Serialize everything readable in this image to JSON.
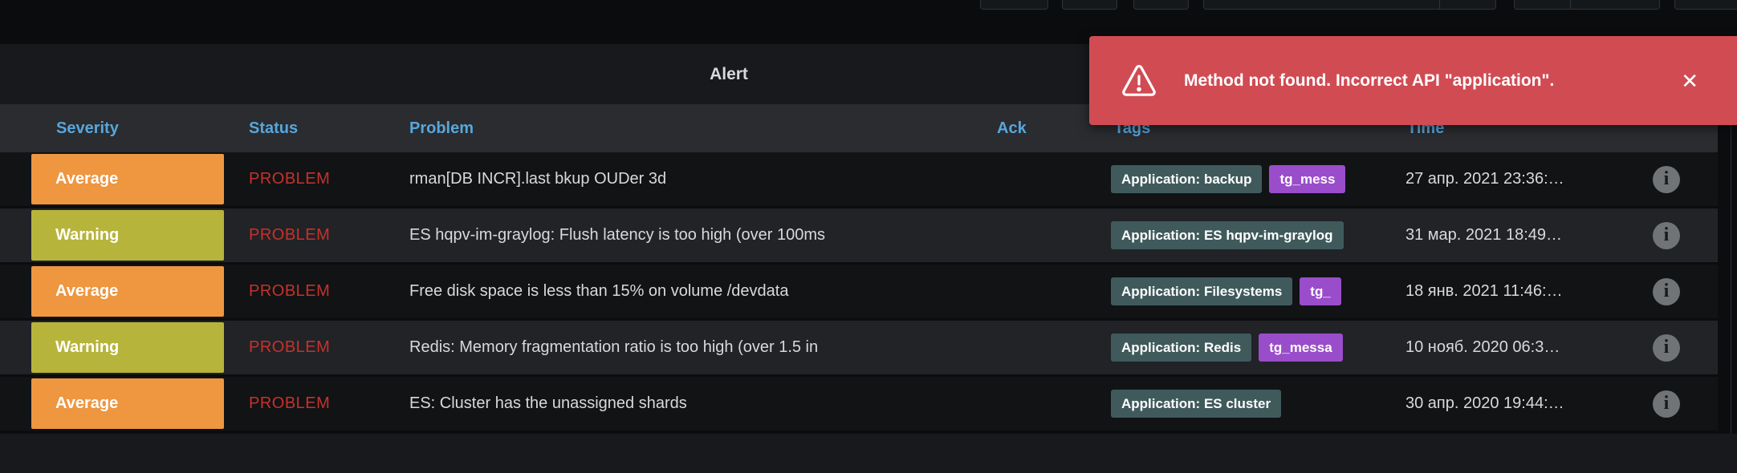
{
  "panel": {
    "title": "Alert"
  },
  "toast": {
    "message": "Method not found. Incorrect API \"application\".",
    "close_glyph": "✕",
    "background": "#d14b53"
  },
  "table": {
    "headers": {
      "severity": "Severity",
      "status": "Status",
      "problem": "Problem",
      "ack": "Ack",
      "tags": "Tags",
      "time": "Time"
    },
    "header_color": "#58a6dd",
    "status_color": "#c8312b",
    "severity_colors": {
      "Average": "#ee9640",
      "Warning": "#b7b43b"
    },
    "rows": [
      {
        "severity": "Average",
        "severity_color": "#ee9640",
        "status": "PROBLEM",
        "problem": "rman[DB INCR].last bkup OUDer 3d",
        "tags": [
          {
            "label": "Application: backup",
            "color": "#405a5c"
          },
          {
            "label": "tg_mess",
            "color": "#9a4dca"
          }
        ],
        "time": "27 апр. 2021 23:36:…"
      },
      {
        "severity": "Warning",
        "severity_color": "#b7b43b",
        "status": "PROBLEM",
        "problem": "ES hqpv-im-graylog: Flush latency is too high (over 100ms",
        "tags": [
          {
            "label": "Application: ES hqpv-im-graylog",
            "color": "#405a5c"
          }
        ],
        "time": "31 мар. 2021 18:49…"
      },
      {
        "severity": "Average",
        "severity_color": "#ee9640",
        "status": "PROBLEM",
        "problem": "Free disk space is less than 15% on volume /devdata",
        "tags": [
          {
            "label": "Application: Filesystems",
            "color": "#405a5c"
          },
          {
            "label": "tg_",
            "color": "#9a4dca"
          }
        ],
        "time": "18 янв. 2021 11:46:…"
      },
      {
        "severity": "Warning",
        "severity_color": "#b7b43b",
        "status": "PROBLEM",
        "problem": "Redis: Memory fragmentation ratio is too high (over 1.5 in",
        "tags": [
          {
            "label": "Application: Redis",
            "color": "#405a5c"
          },
          {
            "label": "tg_messa",
            "color": "#9a4dca"
          }
        ],
        "time": "10 нояб. 2020 06:3…"
      },
      {
        "severity": "Average",
        "severity_color": "#ee9640",
        "status": "PROBLEM",
        "problem": "ES: Cluster has the unassigned shards",
        "tags": [
          {
            "label": "Application: ES cluster",
            "color": "#405a5c"
          }
        ],
        "time": "30 апр. 2020 19:44:…"
      }
    ]
  }
}
